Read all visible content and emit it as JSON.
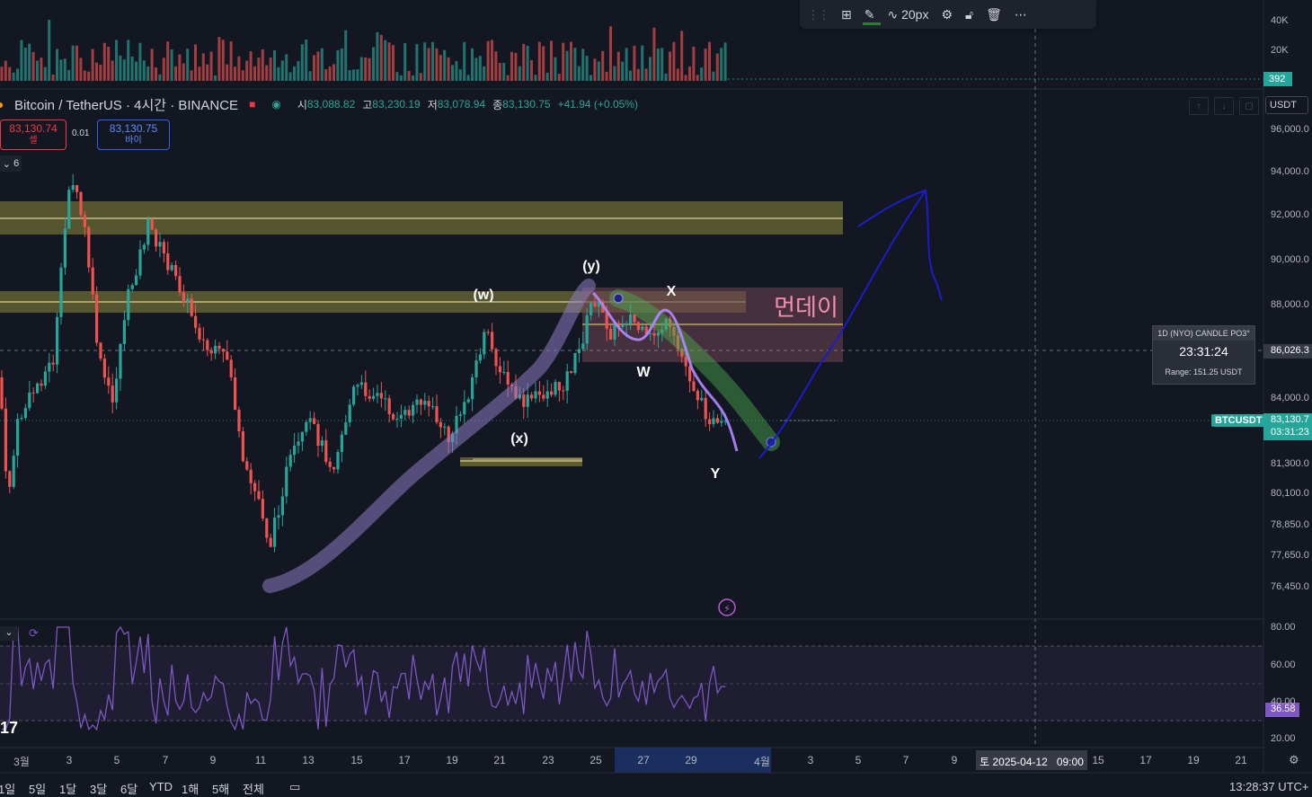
{
  "toolbar": {
    "width_label": "20px",
    "items": [
      "drag-handle",
      "grid",
      "pencil",
      "line-width",
      "settings",
      "lock",
      "trash",
      "more"
    ]
  },
  "legend": {
    "symbol": "Bitcoin / TetherUS · 4시간 · BINANCE",
    "open_label": "시",
    "open": "83,088.82",
    "high_label": "고",
    "high": "83,230.19",
    "low_label": "저",
    "low": "83,078.94",
    "close_label": "종",
    "close": "83,130.75",
    "change": "+41.94 (+0.05%)"
  },
  "trade": {
    "sell_price": "83,130.74",
    "sell_label": "셀",
    "spread": "0.01",
    "buy_price": "83,130.75",
    "buy_label": "바이"
  },
  "indicator_toggle": "6",
  "currency": "USDT",
  "volume_axis": [
    "40K",
    "20K"
  ],
  "volume_value": "392",
  "price_axis": [
    "96,000.0",
    "94,000.0",
    "92,000.0",
    "90,000.0",
    "88,000.0",
    "86,026.3",
    "84,000.0",
    "83,130.7",
    "03:31:23",
    "81,300.0",
    "80,100.0",
    "78,850.0",
    "77,650.0",
    "76,450.0"
  ],
  "rsi_axis": [
    "80.00",
    "60.00",
    "40.00",
    "20.00"
  ],
  "rsi_value": "36.58",
  "symbol_tag": "BTCUSDT",
  "time_axis": [
    "3월",
    "3",
    "5",
    "7",
    "9",
    "11",
    "13",
    "15",
    "17",
    "19",
    "21",
    "23",
    "25",
    "27",
    "29",
    "4월",
    "3",
    "5",
    "7",
    "9",
    "15",
    "17",
    "19",
    "21"
  ],
  "crosshair_time": "토 2025-04-12   09:00",
  "bottom_bar": {
    "ranges": [
      "1일",
      "5일",
      "1달",
      "3달",
      "6달",
      "YTD",
      "1해",
      "5해",
      "전체"
    ],
    "clock": "13:28:37 UTC+"
  },
  "annotations": {
    "y_paren": "(y)",
    "w_paren": "(w)",
    "x_paren": "(x)",
    "X": "X",
    "W": "W",
    "Y": "Y",
    "monday": "먼데이"
  },
  "candle_box": {
    "title": "1D (NYO) CANDLE PO3°",
    "timer": "23:31:24",
    "range": "Range: 151.25 USDT"
  },
  "colors": {
    "up": "#26a69a",
    "down": "#ef5350",
    "background": "#131722",
    "rsi_line": "#7e57c2",
    "zone": "#8d8a3a",
    "monday_zone": "#6b4150",
    "trend_pen": "#1c1cc9"
  }
}
